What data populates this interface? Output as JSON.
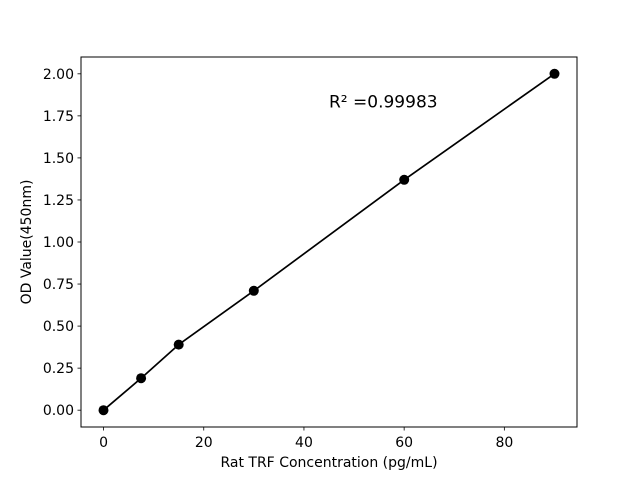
{
  "figure": {
    "background": "#ffffff",
    "foreground": "#000000"
  },
  "chart_data": {
    "type": "line",
    "title": "",
    "x": [
      0,
      7.5,
      15,
      30,
      60,
      90
    ],
    "y": [
      0.0,
      0.19,
      0.39,
      0.71,
      1.37,
      2.0
    ],
    "xlabel": "Rat TRF Concentration (pg/mL)",
    "ylabel": "OD Value(450nm)",
    "xticks": [
      0,
      20,
      40,
      60,
      80
    ],
    "yticks": [
      0.0,
      0.25,
      0.5,
      0.75,
      1.0,
      1.25,
      1.5,
      1.75,
      2.0
    ],
    "ytick_decimals": 2,
    "xtick_decimals": 0,
    "xlim": [
      -4.5,
      94.5
    ],
    "ylim": [
      -0.1,
      2.1
    ],
    "grid": false,
    "legend": null,
    "line_color": "#000000",
    "marker": "circle",
    "marker_color": "#000000",
    "annotation": {
      "text": "R² =0.99983",
      "x": 45,
      "y": 1.8
    }
  }
}
